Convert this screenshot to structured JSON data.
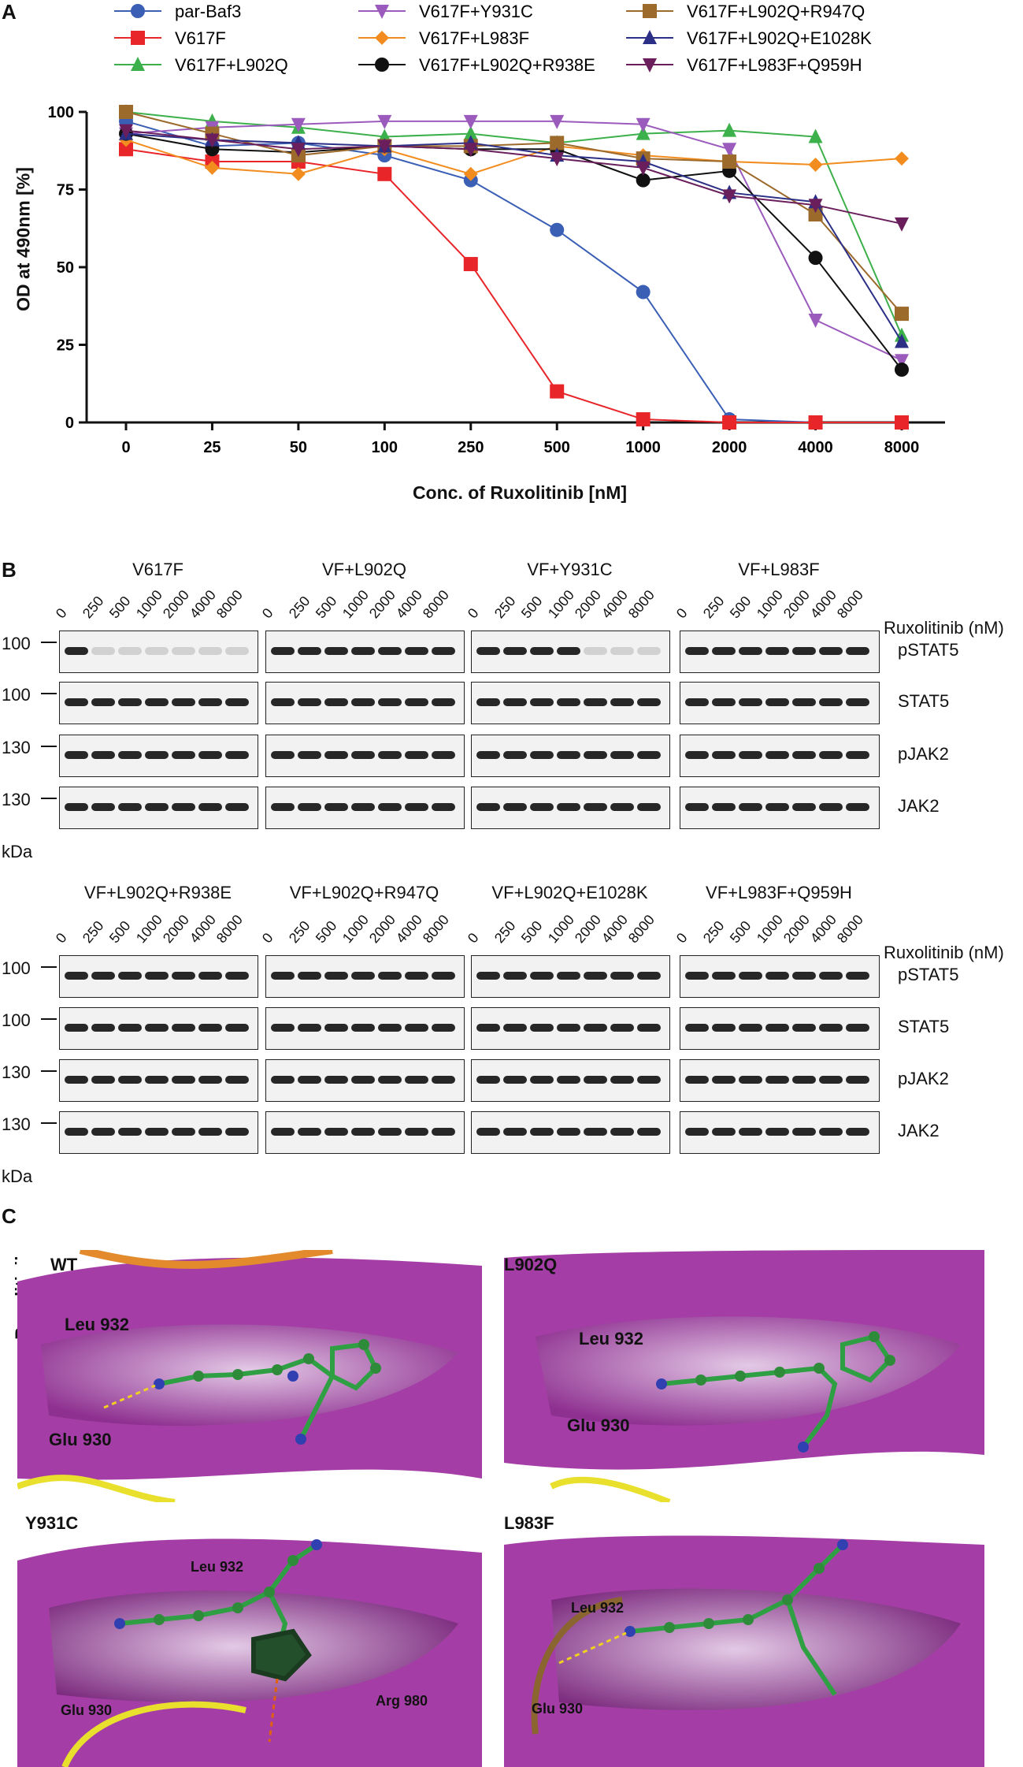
{
  "panels": {
    "a": "A",
    "b": "B",
    "c": "C"
  },
  "chart_data": {
    "type": "line",
    "xlabel": "Conc. of Ruxolitinib [nM]",
    "ylabel": "OD at 490nm [%]",
    "categories": [
      "0",
      "25",
      "50",
      "100",
      "250",
      "500",
      "1000",
      "2000",
      "4000",
      "8000"
    ],
    "yticks": [
      "0",
      "25",
      "50",
      "75",
      "100"
    ],
    "ylim": [
      0,
      100
    ],
    "grid": false,
    "legend_position": "top",
    "series": [
      {
        "name": "par-Baf3",
        "color": "#3a5fb5",
        "marker": "circle",
        "values": [
          97,
          89,
          90,
          86,
          78,
          62,
          42,
          1,
          0,
          0
        ]
      },
      {
        "name": "V617F",
        "color": "#e8262a",
        "marker": "square",
        "values": [
          88,
          84,
          84,
          80,
          51,
          10,
          1,
          0,
          0,
          0
        ]
      },
      {
        "name": "V617F+L902Q",
        "color": "#3cb04a",
        "marker": "triangle-up",
        "values": [
          100,
          97,
          95,
          92,
          93,
          90,
          93,
          94,
          92,
          28
        ]
      },
      {
        "name": "V617F+Y931C",
        "color": "#9b5bbd",
        "marker": "triangle-down",
        "values": [
          93,
          95,
          96,
          97,
          97,
          97,
          96,
          88,
          33,
          20
        ]
      },
      {
        "name": "V617F+L983F",
        "color": "#f28c1e",
        "marker": "diamond",
        "values": [
          91,
          82,
          80,
          88,
          80,
          89,
          86,
          84,
          83,
          85
        ]
      },
      {
        "name": "V617F+L902Q+R938E",
        "color": "#111111",
        "marker": "circle",
        "values": [
          93,
          88,
          87,
          89,
          88,
          88,
          78,
          81,
          53,
          17
        ]
      },
      {
        "name": "V617F+L902Q+R947Q",
        "color": "#9c6a2b",
        "marker": "square",
        "values": [
          100,
          93,
          86,
          89,
          89,
          90,
          85,
          84,
          67,
          35
        ]
      },
      {
        "name": "V617F+L902Q+E1028K",
        "color": "#2b2f86",
        "marker": "triangle-up",
        "values": [
          93,
          91,
          90,
          89,
          90,
          86,
          84,
          74,
          71,
          26
        ]
      },
      {
        "name": "V617F+L983F+Q959H",
        "color": "#6a1f5c",
        "marker": "triangle-down",
        "values": [
          94,
          91,
          88,
          89,
          88,
          85,
          82,
          73,
          70,
          64
        ]
      }
    ]
  },
  "blots": {
    "lane_labels": [
      "0",
      "250",
      "500",
      "1000",
      "2000",
      "4000",
      "8000"
    ],
    "treatment": "Ruxolitinib (nM)",
    "kda_unit": "kDa",
    "row_labels": [
      "pSTAT5",
      "STAT5",
      "pJAK2",
      "JAK2"
    ],
    "kda_marks": [
      "100",
      "100",
      "130",
      "130"
    ],
    "top_groups": [
      "V617F",
      "VF+L902Q",
      "VF+Y931C",
      "VF+L983F"
    ],
    "bottom_groups": [
      "VF+L902Q+R938E",
      "VF+L902Q+R947Q",
      "VF+L902Q+E1028K",
      "VF+L983F+Q959H"
    ]
  },
  "structures": {
    "side_label": "Ruxolitinib",
    "panels": [
      {
        "title": "WT",
        "labels": [
          "Leu 932",
          "Glu 930"
        ]
      },
      {
        "title": "L902Q",
        "labels": [
          "Leu 932",
          "Glu 930"
        ]
      },
      {
        "title": "Y931C",
        "labels": [
          "Leu 932",
          "Glu 930",
          "Arg 980"
        ]
      },
      {
        "title": "L983F",
        "labels": [
          "Leu 932",
          "Glu 930"
        ]
      }
    ]
  }
}
